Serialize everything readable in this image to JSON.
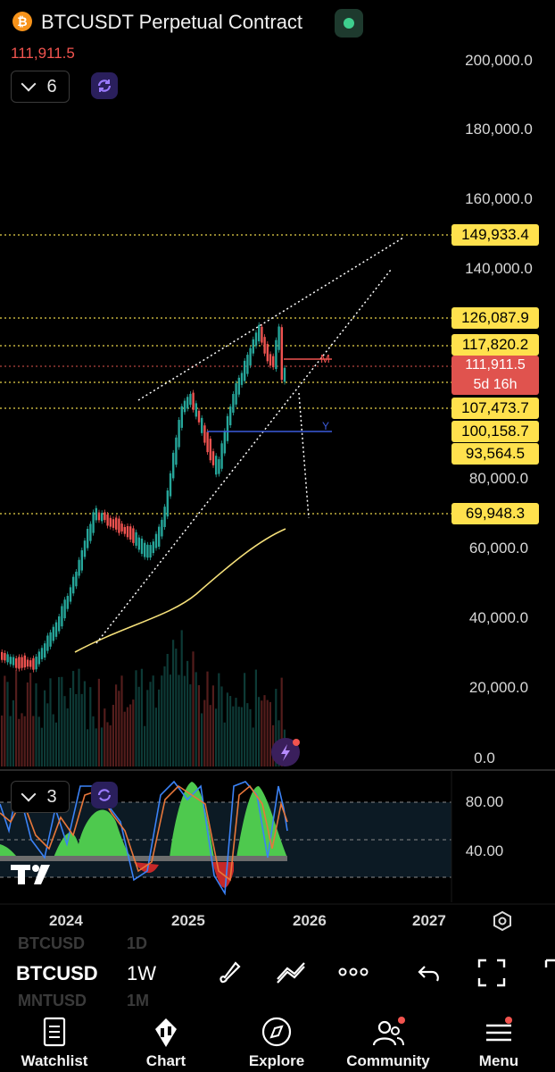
{
  "header": {
    "title": "BTCUSDT Perpetual Contract",
    "last_price": "111,911.5",
    "indicator_count": "6",
    "coin_icon": "bitcoin-icon"
  },
  "price_axis": [
    "200,000.0",
    "180,000.0",
    "160,000.0",
    "140,000.0",
    "80,000.0",
    "60,000.0",
    "40,000.0",
    "20,000.0",
    "0.0"
  ],
  "price_levels": [
    "149,933.4",
    "126,087.9",
    "117,820.2",
    "107,473.7",
    "100,158.7",
    "93,564.5",
    "69,948.3"
  ],
  "current_price_tag": {
    "price": "111,911.5",
    "countdown": "5d 16h"
  },
  "chart_markers": {
    "m_label": "M",
    "y_label": "Y"
  },
  "oscillator": {
    "indicator_count": "3",
    "axis": [
      "80.00",
      "40.00"
    ]
  },
  "time_axis": [
    "2024",
    "2025",
    "2026",
    "2027"
  ],
  "toolbar": {
    "symbol_ghost_above": "BTCUSD",
    "symbol_ghost_above_interval": "1D",
    "symbol": "BTCUSD",
    "interval": "1W",
    "symbol_ghost_below": "MNTUSD",
    "symbol_ghost_below_interval": "1M"
  },
  "tabs": [
    {
      "label": "Watchlist",
      "icon": "list-icon"
    },
    {
      "label": "Chart",
      "icon": "candlestick-icon"
    },
    {
      "label": "Explore",
      "icon": "compass-icon"
    },
    {
      "label": "Community",
      "icon": "users-icon"
    },
    {
      "label": "Menu",
      "icon": "menu-icon"
    }
  ],
  "colors": {
    "bull": "#26a69a",
    "bear": "#ef5350",
    "level_line": "#ffe14d",
    "ma_line": "#f5e07a",
    "accent_blue": "#3b5bdb"
  }
}
